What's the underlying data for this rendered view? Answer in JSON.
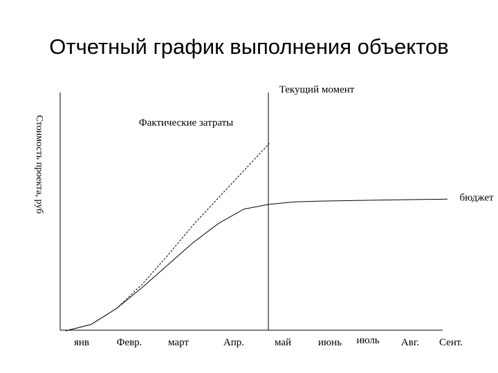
{
  "chart_data": {
    "type": "line",
    "title": "Отчетный график выполнения объектов",
    "ylabel": "Стоимость проекта, руб",
    "xlabel": "",
    "categories": [
      "янв",
      "Февр.",
      "март",
      "Апр.",
      "май",
      "июнь",
      "июль",
      "Авг.",
      "Сент."
    ],
    "current_marker": {
      "label": "Текущий момент",
      "x": 4
    },
    "annotations": [
      {
        "text": "Фактические затраты"
      }
    ],
    "series": [
      {
        "name": "бюджет",
        "style": "solid",
        "points": [
          [
            0,
            0
          ],
          [
            0.5,
            0.04
          ],
          [
            1,
            0.14
          ],
          [
            1.5,
            0.27
          ],
          [
            2,
            0.41
          ],
          [
            2.5,
            0.55
          ],
          [
            3,
            0.67
          ],
          [
            3.5,
            0.76
          ],
          [
            4,
            0.79
          ],
          [
            4.5,
            0.805
          ],
          [
            5,
            0.81
          ],
          [
            6,
            0.815
          ],
          [
            7,
            0.82
          ],
          [
            7.5,
            0.822
          ]
        ]
      },
      {
        "name": "Фактические затраты",
        "style": "dashed",
        "points": [
          [
            0,
            0
          ],
          [
            0.5,
            0.04
          ],
          [
            1,
            0.14
          ],
          [
            1.5,
            0.29
          ],
          [
            2,
            0.47
          ],
          [
            2.5,
            0.66
          ],
          [
            3,
            0.83
          ],
          [
            3.5,
            1.0
          ],
          [
            4,
            1.17
          ]
        ]
      }
    ],
    "xlim": [
      0,
      8
    ],
    "ylim": [
      0,
      1.3
    ],
    "grid": false,
    "legend": "none"
  }
}
